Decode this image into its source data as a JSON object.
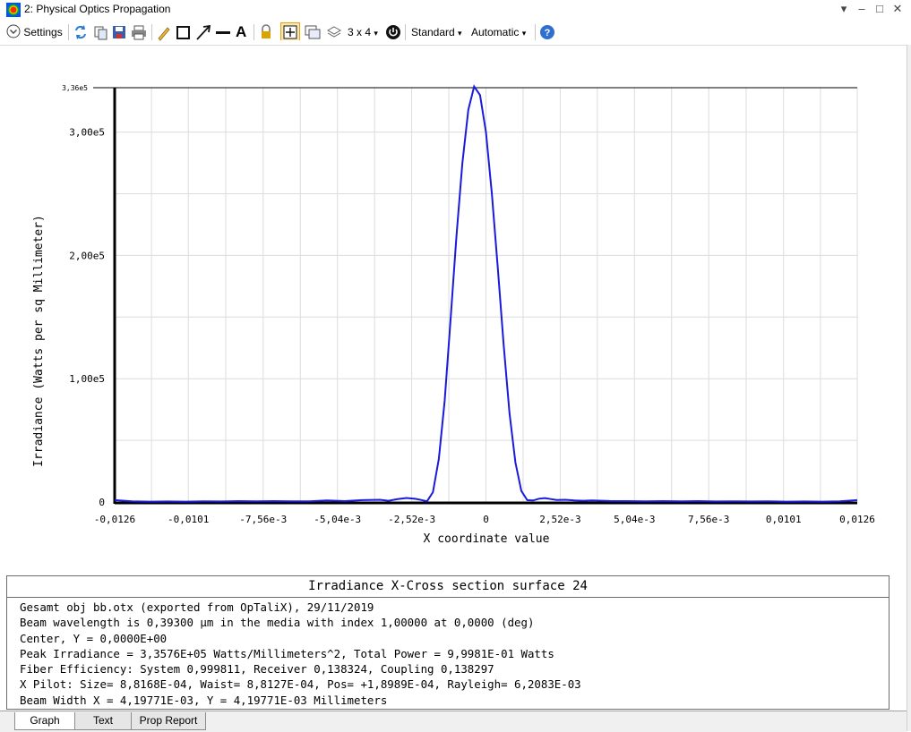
{
  "window": {
    "title": "2: Physical Optics Propagation"
  },
  "toolbar": {
    "settings_label": "Settings",
    "layout_label": "3 x 4",
    "standard_label": "Standard",
    "automatic_label": "Automatic"
  },
  "chart_data": {
    "type": "line",
    "xlabel": "X coordinate value",
    "ylabel": "Irradiance (Watts per sq Millimeter)",
    "xlim": [
      -0.0126,
      0.0126
    ],
    "ylim": [
      0,
      336000
    ],
    "x_ticks": [
      -0.0126,
      -0.0101,
      -0.00756,
      -0.00504,
      -0.00252,
      0,
      0.00252,
      0.00504,
      0.00756,
      0.0101,
      0.0126
    ],
    "x_tick_labels": [
      "-0,0126",
      "-0,0101",
      "-7,56e-3",
      "-5,04e-3",
      "-2,52e-3",
      "0",
      "2,52e-3",
      "5,04e-3",
      "7,56e-3",
      "0,0101",
      "0,0126"
    ],
    "y_ticks": [
      0,
      100000,
      200000,
      300000,
      336000
    ],
    "y_tick_labels": [
      "0",
      "1,00e5",
      "2,00e5",
      "3,00e5",
      "3,36e5"
    ],
    "grid": true,
    "line_color": "#1a1adc",
    "series": [
      {
        "x": [
          -0.0126,
          -0.012,
          -0.0114,
          -0.0108,
          -0.0102,
          -0.0096,
          -0.009,
          -0.0084,
          -0.0078,
          -0.0072,
          -0.0066,
          -0.006,
          -0.0054,
          -0.0048,
          -0.0042,
          -0.0036,
          -0.0033,
          -0.003,
          -0.0027,
          -0.0024,
          -0.0022,
          -0.002,
          -0.0018,
          -0.0016,
          -0.0014,
          -0.0012,
          -0.001,
          -0.0008,
          -0.0006,
          -0.0004,
          -0.0002,
          0,
          0.0002,
          0.0004,
          0.0006,
          0.0008,
          0.001,
          0.0012,
          0.0014,
          0.0016,
          0.0018,
          0.002,
          0.0022,
          0.0024,
          0.0027,
          0.003,
          0.0033,
          0.0036,
          0.0042,
          0.0048,
          0.0054,
          0.006,
          0.0066,
          0.0072,
          0.0078,
          0.0084,
          0.009,
          0.0096,
          0.0102,
          0.0108,
          0.0114,
          0.012,
          0.0126
        ],
        "y": [
          1500,
          500,
          300,
          400,
          300,
          500,
          400,
          700,
          500,
          700,
          600,
          600,
          1200,
          700,
          1500,
          1800,
          1000,
          2300,
          3300,
          2600,
          1700,
          600,
          8000,
          35000,
          82000,
          148000,
          216000,
          275000,
          318000,
          337000,
          330000,
          300000,
          250000,
          190000,
          128000,
          72000,
          32000,
          9000,
          1500,
          1200,
          2700,
          3200,
          2400,
          1700,
          1800,
          1200,
          1000,
          1300,
          800,
          700,
          600,
          700,
          500,
          700,
          400,
          600,
          400,
          500,
          300,
          400,
          300,
          500,
          1500
        ]
      }
    ]
  },
  "text_panel": {
    "title": "Irradiance X-Cross section surface 24",
    "lines": [
      "Gesamt obj bb.otx (exported from OpTaliX), 29/11/2019",
      "Beam wavelength is 0,39300 µm in the media with index 1,00000 at 0,0000 (deg)",
      "Center, Y = 0,0000E+00",
      "Peak Irradiance = 3,3576E+05 Watts/Millimeters^2, Total Power = 9,9981E-01 Watts",
      "Fiber Efficiency: System 0,999811, Receiver 0,138324, Coupling 0,138297",
      "X Pilot: Size= 8,8168E-04, Waist= 8,8127E-04, Pos= +1,8989E-04, Rayleigh= 6,2083E-03",
      "Beam Width X = 4,19771E-03, Y = 4,19771E-03 Millimeters"
    ]
  },
  "tabs": [
    {
      "label": "Graph",
      "active": true
    },
    {
      "label": "Text",
      "active": false
    },
    {
      "label": "Prop Report",
      "active": false
    }
  ]
}
